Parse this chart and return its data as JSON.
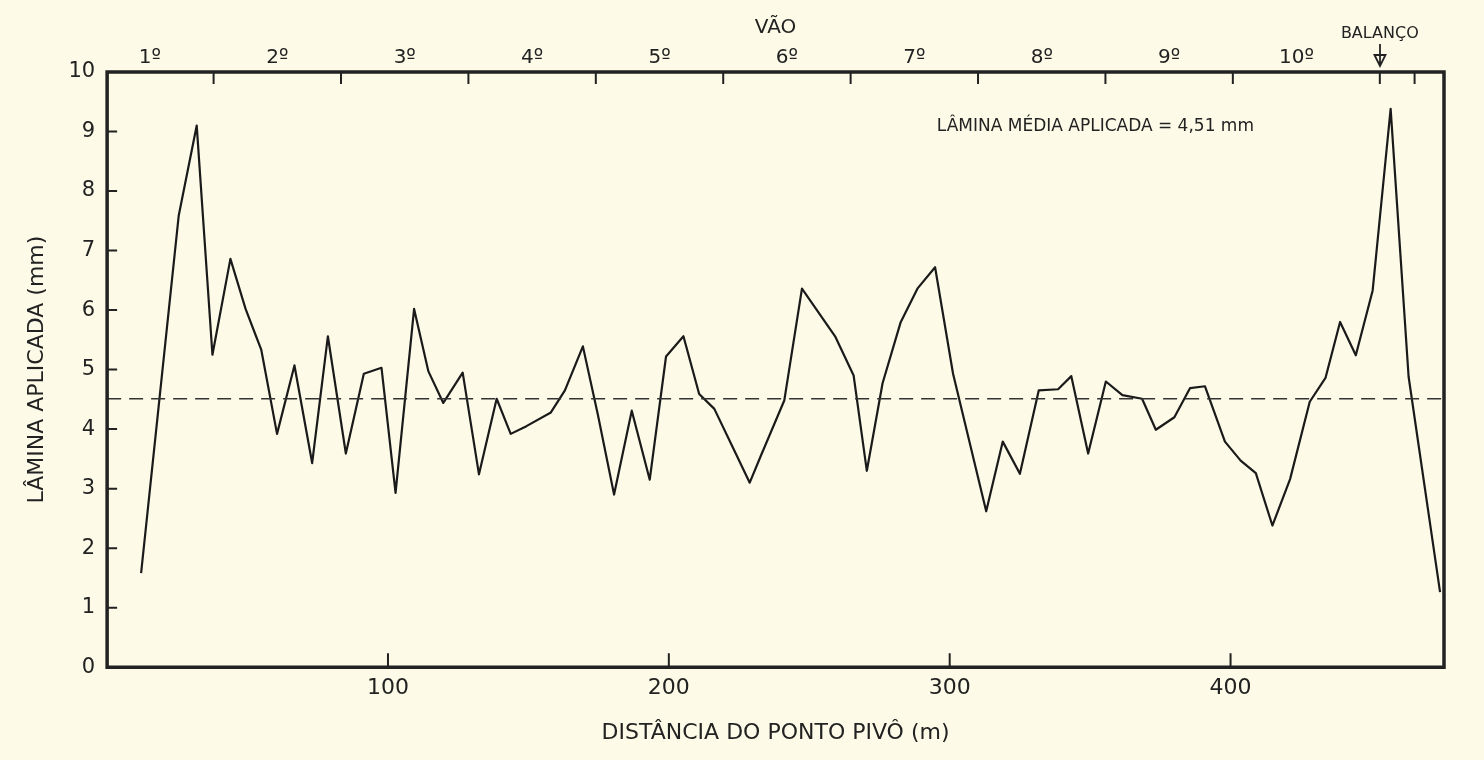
{
  "chart_data": {
    "type": "line",
    "xlabel": "DISTÂNCIA DO PONTO PIVÔ (m)",
    "ylabel": "LÂMINA APLICADA (mm)",
    "x2label": "VÃO",
    "x": [
      12.1,
      25.5,
      31.9,
      37.5,
      43.9,
      49.3,
      54.9,
      60.5,
      66.7,
      73.0,
      78.6,
      85.0,
      91.4,
      97.7,
      102.7,
      109.3,
      114.4,
      119.7,
      126.6,
      132.4,
      138.7,
      143.7,
      149.3,
      158.0,
      163.0,
      169.4,
      174.7,
      180.5,
      186.8,
      193.2,
      199.0,
      205.2,
      210.8,
      216.2,
      222.8,
      228.8,
      233.1,
      241.1,
      247.4,
      259.2,
      265.8,
      270.5,
      276.1,
      282.5,
      288.5,
      294.8,
      301.2,
      313.0,
      318.9,
      325.0,
      331.7,
      338.6,
      343.3,
      349.3,
      355.6,
      361.5,
      368.5,
      373.4,
      380.0,
      385.6,
      390.9,
      398.0,
      403.6,
      409.0,
      414.9,
      421.2,
      428.2,
      433.8,
      439.0,
      444.6,
      450.6,
      457.0,
      463.4,
      474.6
    ],
    "series": [
      {
        "color": "#1a1a1a",
        "values": [
          1.58,
          7.59,
          9.1,
          5.25,
          6.86,
          6.02,
          5.33,
          3.92,
          5.07,
          3.43,
          5.56,
          3.59,
          4.93,
          5.03,
          2.93,
          6.02,
          4.97,
          4.44,
          4.95,
          3.24,
          4.51,
          3.92,
          4.05,
          4.28,
          4.65,
          5.39,
          4.25,
          2.9,
          4.31,
          3.15,
          5.22,
          5.56,
          4.59,
          4.34,
          3.69,
          3.1,
          3.59,
          4.48,
          6.36,
          5.56,
          4.9,
          3.3,
          4.77,
          5.79,
          6.36,
          6.72,
          4.93,
          2.62,
          3.79,
          3.25,
          4.65,
          4.67,
          4.89,
          3.59,
          4.8,
          4.57,
          4.51,
          3.99,
          4.2,
          4.69,
          4.72,
          3.79,
          3.47,
          3.26,
          2.38,
          3.16,
          4.46,
          4.86,
          5.8,
          5.24,
          6.33,
          9.38,
          4.88,
          1.26
        ]
      }
    ],
    "xlim": [
      0,
      476
    ],
    "xticks": [
      100,
      200,
      300,
      400
    ],
    "ylim": [
      0,
      10
    ],
    "yticks": [
      0,
      1,
      2,
      3,
      4,
      5,
      6,
      7,
      8,
      9,
      10
    ],
    "ref_lines": [
      {
        "axis": "y",
        "value": 4.51,
        "line_style": "dashed",
        "color": "#333333"
      }
    ],
    "annotations": [
      "LÂMINA MÉDIA APLICADA = 4,51 mm",
      "1º",
      "2º",
      "3º",
      "4º",
      "5º",
      "6º",
      "7º",
      "8º",
      "9º",
      "10º",
      "BALANÇO"
    ],
    "grid": false,
    "legend": false,
    "marker": "none",
    "line_style": "solid"
  }
}
